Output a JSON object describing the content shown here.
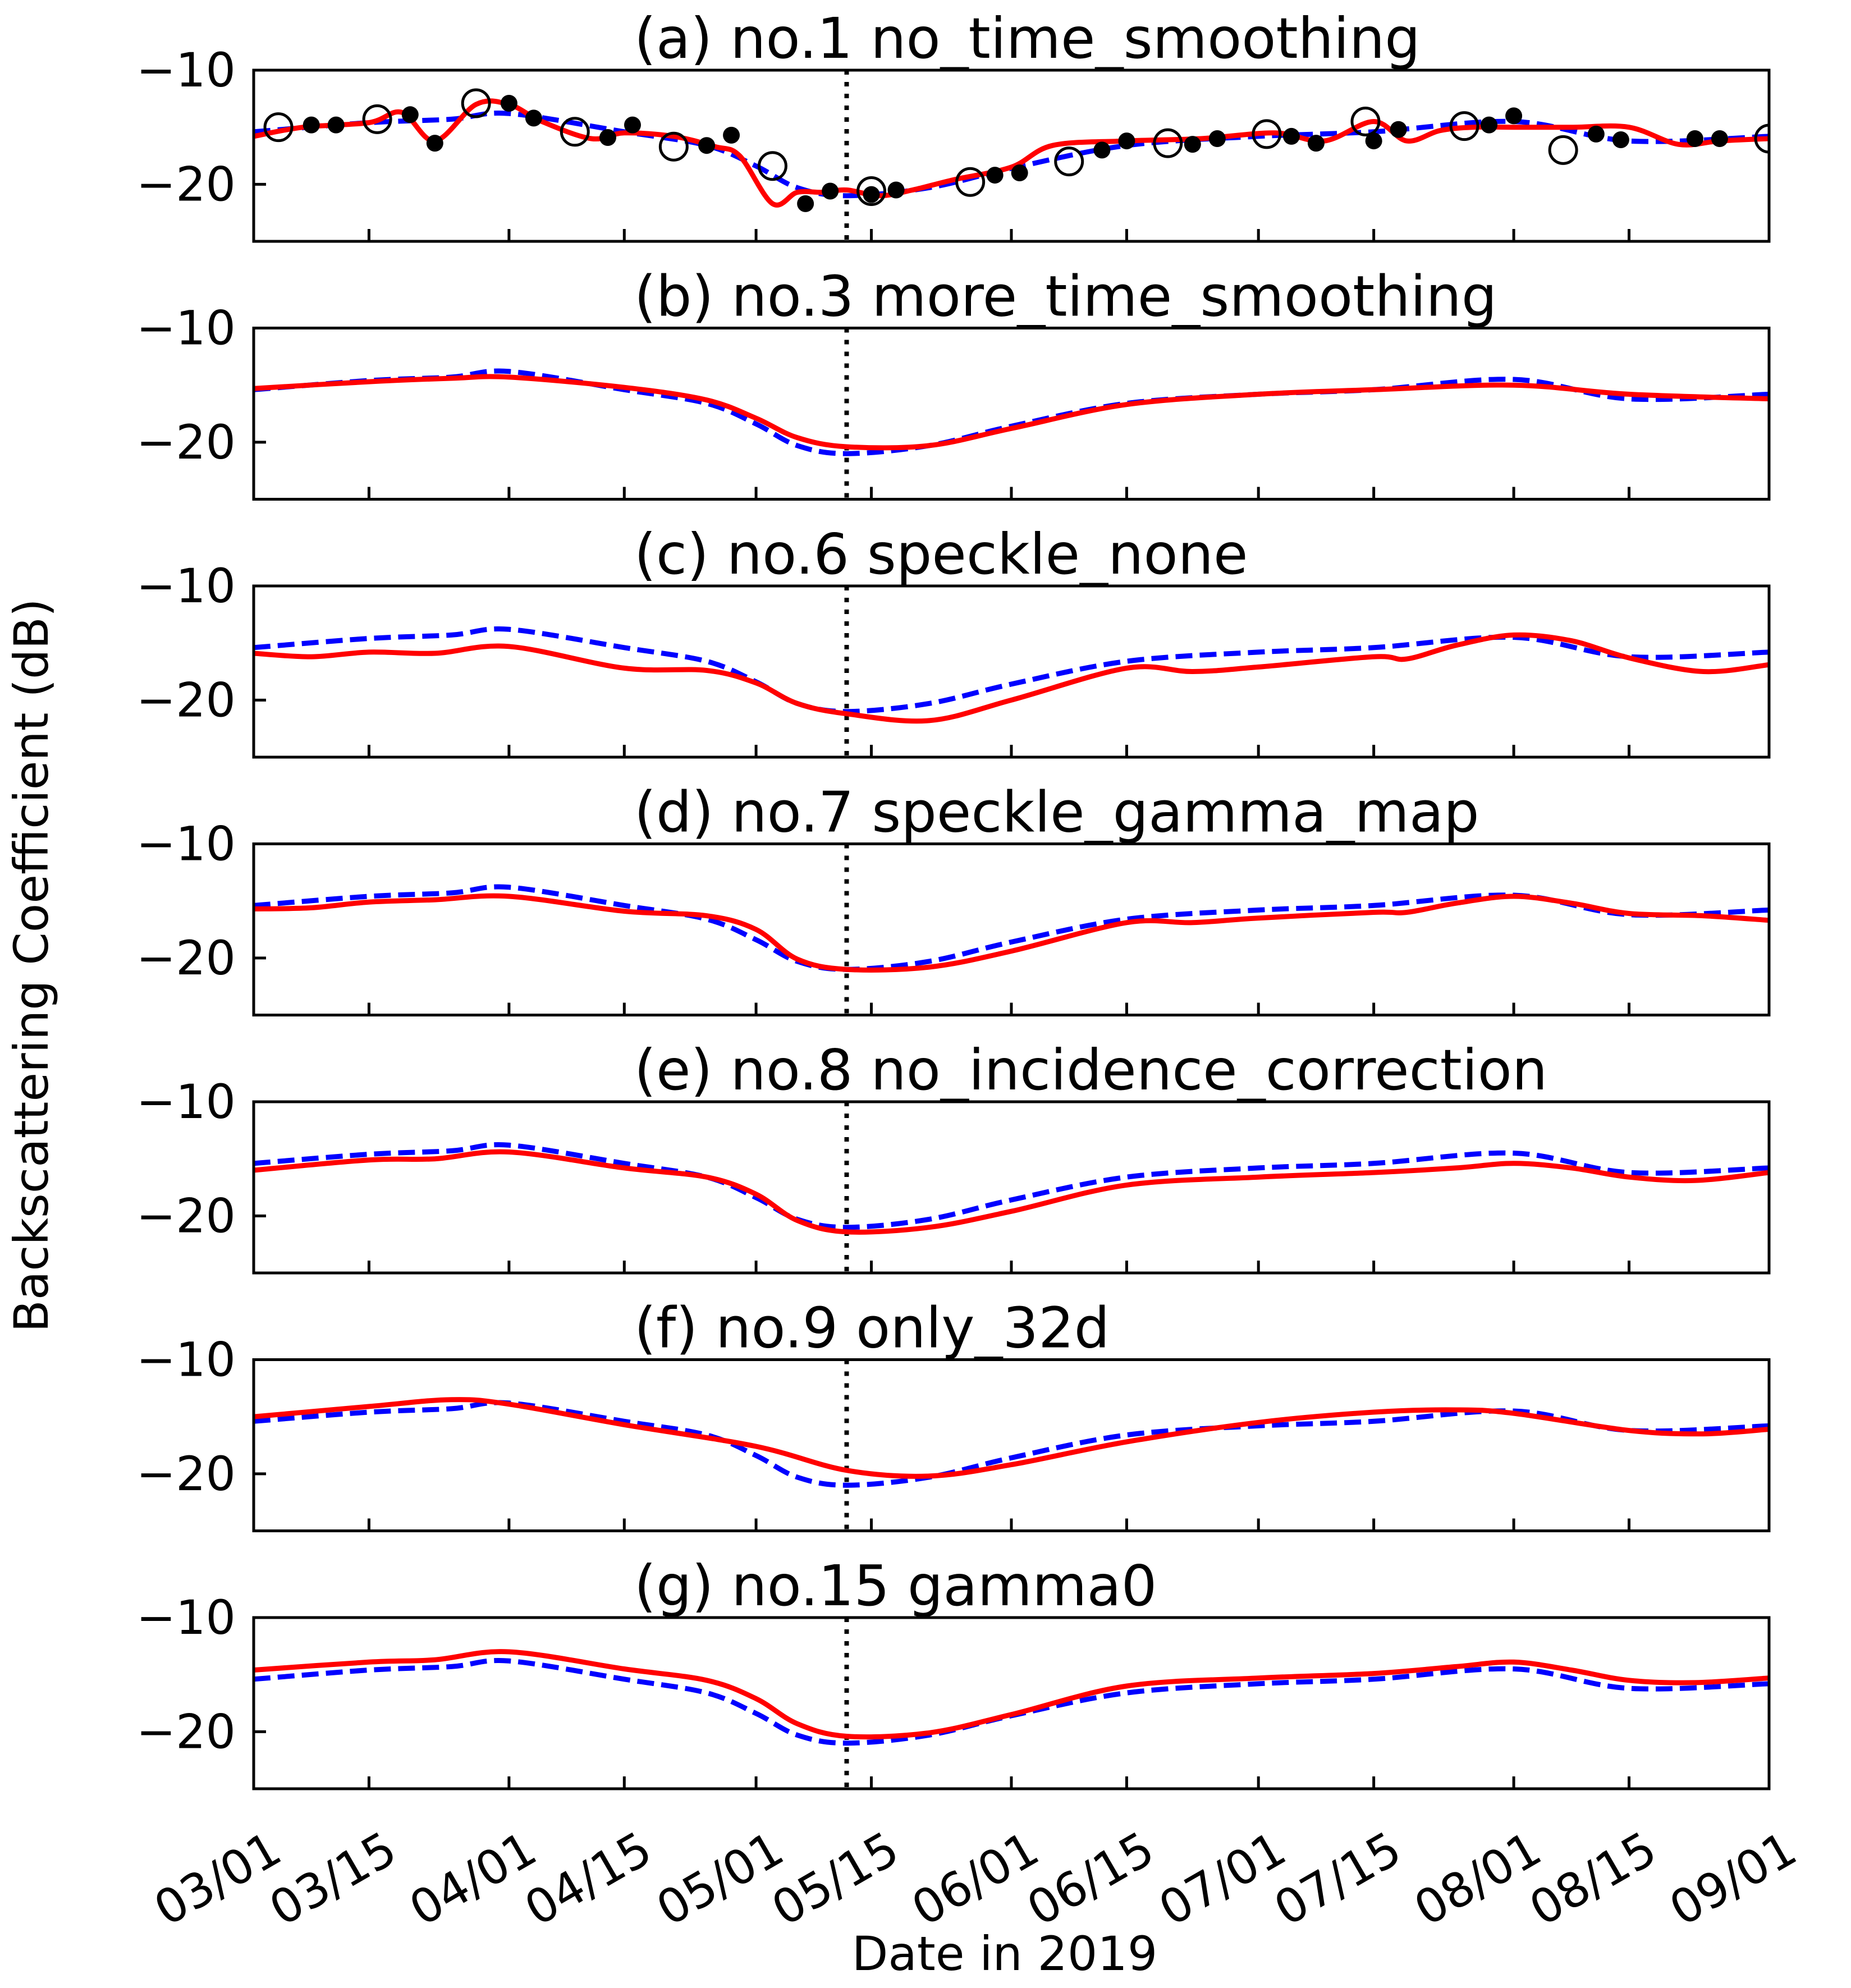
{
  "chart_data": {
    "type": "line",
    "ylabel": "Backscattering Coefficient (dB)",
    "xlabel": "Date in 2019",
    "x_tick_labels": [
      "03/01",
      "03/15",
      "04/01",
      "04/15",
      "05/01",
      "05/15",
      "06/01",
      "06/15",
      "07/01",
      "07/15",
      "08/01",
      "08/15",
      "09/01"
    ],
    "x_tick_days": [
      0,
      14,
      31,
      45,
      61,
      75,
      92,
      106,
      122,
      136,
      153,
      167,
      184
    ],
    "xlim": [
      0,
      184
    ],
    "ylim": [
      -25,
      -10
    ],
    "yticks": [
      -10,
      -20
    ],
    "y_tick_labels": [
      "−10",
      "−20"
    ],
    "vline_day": 72,
    "reference_series": {
      "name": "reference",
      "style": "blue dashed",
      "color": "#0000ff",
      "x": [
        0,
        14,
        24,
        31,
        45,
        55,
        61,
        66,
        72,
        82,
        92,
        106,
        122,
        136,
        153,
        167,
        184
      ],
      "y": [
        -15.4,
        -14.6,
        -14.3,
        -13.8,
        -15.4,
        -16.6,
        -18.4,
        -20.3,
        -21.0,
        -20.3,
        -18.6,
        -16.6,
        -15.8,
        -15.4,
        -14.5,
        -16.2,
        -15.8
      ]
    },
    "panels": [
      {
        "title": "(a) no.1 no_time_smoothing",
        "series": {
          "name": "no_time_smoothing",
          "color": "#ff0000",
          "x": [
            0,
            6,
            14,
            18,
            22,
            27,
            31,
            35,
            41,
            45,
            51,
            56,
            59,
            63,
            66,
            69,
            72,
            76,
            80,
            85,
            92,
            97,
            106,
            115,
            124,
            130,
            136,
            140,
            144,
            148,
            153,
            160,
            167,
            173,
            178,
            184
          ],
          "y": [
            -15.8,
            -15.0,
            -14.6,
            -13.7,
            -16.2,
            -13.0,
            -13.0,
            -14.5,
            -16.0,
            -15.5,
            -15.8,
            -16.7,
            -17.5,
            -21.7,
            -20.7,
            -20.7,
            -20.5,
            -21.0,
            -20.5,
            -19.6,
            -18.5,
            -16.6,
            -16.2,
            -16.0,
            -15.5,
            -16.2,
            -14.5,
            -16.2,
            -15.3,
            -15.0,
            -15.0,
            -15.0,
            -15.0,
            -16.5,
            -16.2,
            -16.0
          ]
        },
        "observations": {
          "filled_points": [
            [
              7,
              -14.8
            ],
            [
              10,
              -14.8
            ],
            [
              19,
              -13.9
            ],
            [
              22,
              -16.4
            ],
            [
              31,
              -12.9
            ],
            [
              34,
              -14.2
            ],
            [
              43,
              -15.9
            ],
            [
              46,
              -14.8
            ],
            [
              55,
              -16.6
            ],
            [
              58,
              -15.7
            ],
            [
              67,
              -21.7
            ],
            [
              70,
              -20.6
            ],
            [
              75,
              -20.9
            ],
            [
              78,
              -20.5
            ],
            [
              90,
              -19.2
            ],
            [
              93,
              -19.0
            ],
            [
              103,
              -17.0
            ],
            [
              106,
              -16.2
            ],
            [
              114,
              -16.5
            ],
            [
              117,
              -16.0
            ],
            [
              126,
              -15.8
            ],
            [
              129,
              -16.4
            ],
            [
              136,
              -16.2
            ],
            [
              139,
              -15.2
            ],
            [
              150,
              -14.8
            ],
            [
              153,
              -14.0
            ],
            [
              163,
              -15.6
            ],
            [
              166,
              -16.1
            ],
            [
              175,
              -16.0
            ],
            [
              178,
              -16.0
            ]
          ],
          "open_points": [
            [
              3,
              -15.0
            ],
            [
              15,
              -14.3
            ],
            [
              27,
              -12.9
            ],
            [
              39,
              -15.4
            ],
            [
              51,
              -16.7
            ],
            [
              63,
              -18.4
            ],
            [
              75,
              -20.6
            ],
            [
              87,
              -19.8
            ],
            [
              99,
              -18.0
            ],
            [
              111,
              -16.4
            ],
            [
              123,
              -15.6
            ],
            [
              135,
              -14.5
            ],
            [
              147,
              -14.9
            ],
            [
              159,
              -17.0
            ],
            [
              184,
              -16.0
            ]
          ]
        }
      },
      {
        "title": "(b) no.3 more_time_smoothing",
        "series": {
          "name": "more_time_smoothing",
          "color": "#ff0000",
          "x": [
            0,
            14,
            24,
            31,
            45,
            55,
            61,
            66,
            72,
            82,
            92,
            106,
            122,
            136,
            153,
            167,
            184
          ],
          "y": [
            -15.3,
            -14.7,
            -14.4,
            -14.3,
            -15.2,
            -16.3,
            -17.9,
            -19.6,
            -20.4,
            -20.3,
            -18.8,
            -16.7,
            -15.8,
            -15.4,
            -15.0,
            -15.8,
            -16.2
          ]
        }
      },
      {
        "title": "(c) no.6 speckle_none",
        "series": {
          "name": "speckle_none",
          "color": "#ff0000",
          "x": [
            0,
            7,
            14,
            22,
            31,
            45,
            55,
            61,
            66,
            72,
            82,
            92,
            106,
            114,
            122,
            136,
            140,
            146,
            153,
            160,
            167,
            176,
            184
          ],
          "y": [
            -15.9,
            -16.2,
            -15.8,
            -15.9,
            -15.3,
            -17.2,
            -17.4,
            -18.5,
            -20.3,
            -21.2,
            -21.8,
            -20.0,
            -17.2,
            -17.5,
            -17.1,
            -16.2,
            -16.4,
            -15.2,
            -14.3,
            -14.8,
            -16.3,
            -17.5,
            -16.9
          ]
        }
      },
      {
        "title": "(d) no.7 speckle_gamma_map",
        "series": {
          "name": "speckle_gamma_map",
          "color": "#ff0000",
          "x": [
            0,
            7,
            14,
            22,
            31,
            45,
            55,
            61,
            66,
            72,
            82,
            92,
            106,
            114,
            122,
            136,
            140,
            146,
            153,
            160,
            167,
            176,
            184
          ],
          "y": [
            -15.7,
            -15.6,
            -15.1,
            -14.9,
            -14.6,
            -15.9,
            -16.3,
            -17.5,
            -20.1,
            -21.0,
            -20.8,
            -19.4,
            -16.9,
            -16.9,
            -16.5,
            -16.0,
            -16.0,
            -15.2,
            -14.6,
            -15.2,
            -16.1,
            -16.3,
            -16.7
          ]
        }
      },
      {
        "title": "(e) no.8 no_incidence_correction",
        "series": {
          "name": "no_incidence_correction",
          "color": "#ff0000",
          "x": [
            0,
            14,
            22,
            31,
            45,
            55,
            61,
            66,
            72,
            82,
            92,
            106,
            122,
            136,
            146,
            153,
            160,
            167,
            175,
            184
          ],
          "y": [
            -16.0,
            -15.1,
            -15.0,
            -14.4,
            -15.8,
            -16.6,
            -18.1,
            -20.4,
            -21.4,
            -21.0,
            -19.6,
            -17.3,
            -16.6,
            -16.2,
            -15.8,
            -15.4,
            -15.8,
            -16.6,
            -16.9,
            -16.2
          ]
        }
      },
      {
        "title": "(f) no.9 only_32d",
        "series": {
          "name": "only_32d",
          "color": "#ff0000",
          "x": [
            0,
            14,
            24,
            31,
            45,
            61,
            72,
            82,
            92,
            106,
            122,
            136,
            146,
            153,
            167,
            176,
            184
          ],
          "y": [
            -15.0,
            -14.1,
            -13.5,
            -13.9,
            -15.7,
            -17.6,
            -19.7,
            -20.2,
            -19.2,
            -17.2,
            -15.5,
            -14.6,
            -14.4,
            -14.7,
            -16.2,
            -16.5,
            -16.1
          ]
        }
      },
      {
        "title": "(g) no.15 gamma0",
        "series": {
          "name": "gamma0",
          "color": "#ff0000",
          "x": [
            0,
            14,
            22,
            31,
            45,
            55,
            61,
            66,
            72,
            82,
            92,
            106,
            122,
            136,
            146,
            153,
            160,
            167,
            175,
            184
          ],
          "y": [
            -14.6,
            -13.9,
            -13.7,
            -13.0,
            -14.5,
            -15.5,
            -17.1,
            -19.3,
            -20.4,
            -20.1,
            -18.5,
            -16.0,
            -15.3,
            -14.9,
            -14.3,
            -13.9,
            -14.6,
            -15.5,
            -15.7,
            -15.3
          ]
        }
      }
    ]
  }
}
